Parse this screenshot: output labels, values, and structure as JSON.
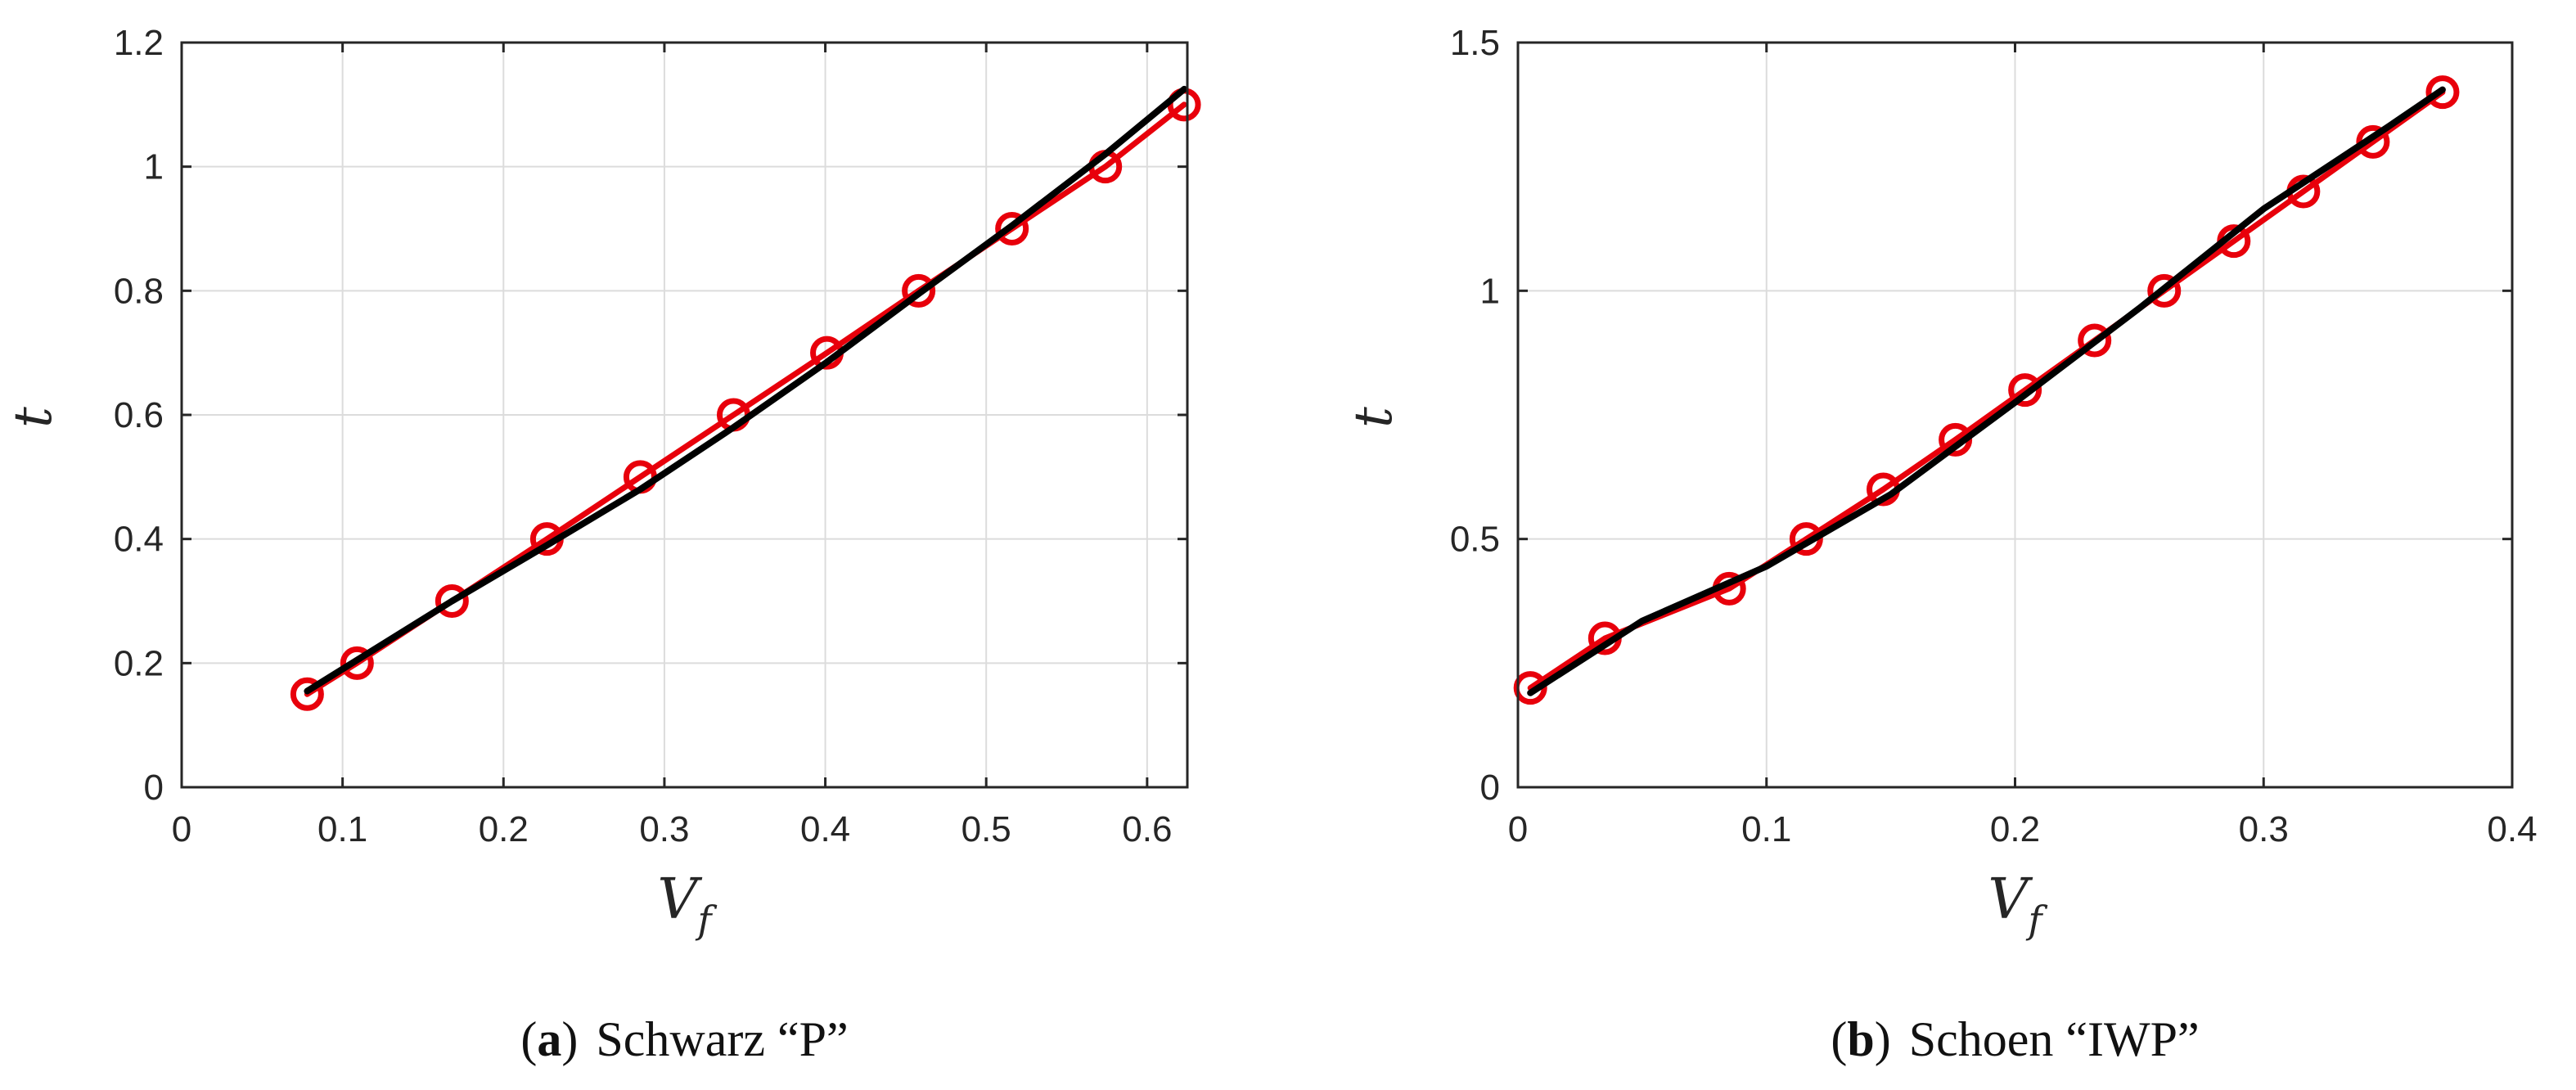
{
  "chart_data": [
    {
      "type": "line",
      "xlabel": "V",
      "xlabel_sub": "f",
      "ylabel": "t",
      "xlim": [
        0,
        0.625
      ],
      "ylim": [
        0,
        1.2
      ],
      "xticks": [
        0,
        0.1,
        0.2,
        0.3,
        0.4,
        0.5,
        0.6
      ],
      "yticks": [
        0,
        0.2,
        0.4,
        0.6,
        0.8,
        1,
        1.2
      ],
      "xtick_labels": [
        "0",
        "0.1",
        "0.2",
        "0.3",
        "0.4",
        "0.5",
        "0.6"
      ],
      "ytick_labels": [
        "0",
        "0.2",
        "0.4",
        "0.6",
        "0.8",
        "1",
        "1.2"
      ],
      "grid": true,
      "caption_letter": "a",
      "caption_text": "Schwarz “P”",
      "series": [
        {
          "color": "#e8000b",
          "marker": "circle",
          "x": [
            0.078,
            0.109,
            0.168,
            0.227,
            0.285,
            0.343,
            0.401,
            0.458,
            0.516,
            0.574,
            0.623
          ],
          "y": [
            0.15,
            0.2,
            0.3,
            0.4,
            0.5,
            0.6,
            0.7,
            0.8,
            0.9,
            1.0,
            1.1
          ]
        },
        {
          "color": "#000000",
          "marker": "none",
          "x": [
            0.078,
            0.168,
            0.227,
            0.285,
            0.343,
            0.401,
            0.458,
            0.516,
            0.574,
            0.623
          ],
          "y": [
            0.155,
            0.3,
            0.39,
            0.48,
            0.58,
            0.685,
            0.795,
            0.905,
            1.02,
            1.125
          ]
        }
      ]
    },
    {
      "type": "line",
      "xlabel": "V",
      "xlabel_sub": "f",
      "ylabel": "t",
      "xlim": [
        0,
        0.4
      ],
      "ylim": [
        0,
        1.5
      ],
      "xticks": [
        0,
        0.1,
        0.2,
        0.3,
        0.4
      ],
      "yticks": [
        0,
        0.5,
        1,
        1.5
      ],
      "xtick_labels": [
        "0",
        "0.1",
        "0.2",
        "0.3",
        "0.4"
      ],
      "ytick_labels": [
        "0",
        "0.5",
        "1",
        "1.5"
      ],
      "grid": true,
      "caption_letter": "b",
      "caption_text": "Schoen “IWP”",
      "series": [
        {
          "color": "#e8000b",
          "marker": "circle",
          "x": [
            0.005,
            0.035,
            0.085,
            0.116,
            0.147,
            0.176,
            0.204,
            0.232,
            0.26,
            0.288,
            0.316,
            0.344,
            0.372
          ],
          "y": [
            0.2,
            0.3,
            0.4,
            0.5,
            0.6,
            0.7,
            0.8,
            0.9,
            1.0,
            1.1,
            1.2,
            1.3,
            1.4
          ]
        },
        {
          "color": "#000000",
          "marker": "none",
          "x": [
            0.005,
            0.05,
            0.1,
            0.15,
            0.2,
            0.25,
            0.3,
            0.35,
            0.372
          ],
          "y": [
            0.19,
            0.335,
            0.445,
            0.59,
            0.775,
            0.965,
            1.165,
            1.33,
            1.405
          ]
        }
      ]
    }
  ]
}
